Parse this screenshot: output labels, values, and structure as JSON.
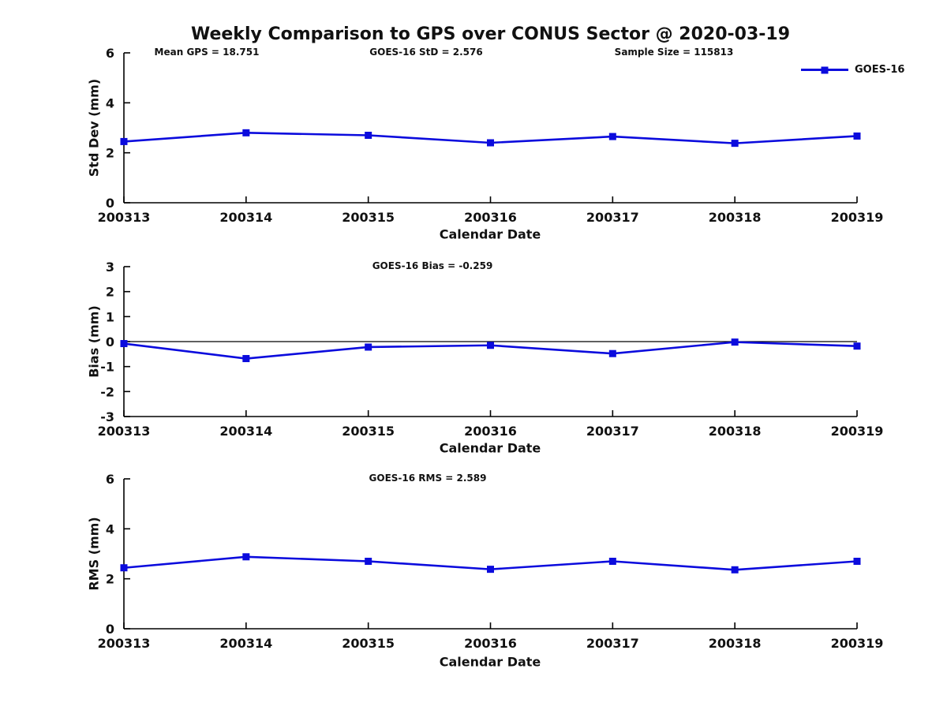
{
  "figure": {
    "title": "Weekly Comparison to GPS over CONUS Sector @ 2020-03-19",
    "annotations": {
      "mean_gps": "Mean GPS = 18.751",
      "std": "GOES-16 StD = 2.576",
      "sample_size": "Sample Size = 115813"
    },
    "legend": {
      "label": "GOES-16",
      "color": "#0b0bdd"
    },
    "line_color": "#0b0bdd",
    "axis_color": "#000000"
  },
  "chart_data": [
    {
      "type": "line",
      "title": "",
      "xlabel": "Calendar Date",
      "ylabel": "Std Dev (mm)",
      "categories": [
        "200313",
        "200314",
        "200315",
        "200316",
        "200317",
        "200318",
        "200319"
      ],
      "series": [
        {
          "name": "GOES-16",
          "values": [
            2.45,
            2.8,
            2.7,
            2.4,
            2.65,
            2.38,
            2.67
          ]
        }
      ],
      "ylim": [
        0,
        6
      ],
      "yticks": [
        0,
        2,
        4,
        6
      ],
      "grid": false,
      "legend_position": "upper-right",
      "marker": "square"
    },
    {
      "type": "line",
      "title": "GOES-16 Bias  = -0.259",
      "xlabel": "Calendar Date",
      "ylabel": "Bias (mm)",
      "categories": [
        "200313",
        "200314",
        "200315",
        "200316",
        "200317",
        "200318",
        "200319"
      ],
      "series": [
        {
          "name": "GOES-16",
          "values": [
            -0.08,
            -0.68,
            -0.22,
            -0.15,
            -0.48,
            -0.02,
            -0.18
          ]
        }
      ],
      "ylim": [
        -3,
        3
      ],
      "yticks": [
        3,
        2,
        1,
        0,
        -1,
        -2,
        -3
      ],
      "zeroline": true,
      "grid": false,
      "marker": "square"
    },
    {
      "type": "line",
      "title": "GOES-16 RMS = 2.589",
      "xlabel": "Calendar Date",
      "ylabel": "RMS (mm)",
      "categories": [
        "200313",
        "200314",
        "200315",
        "200316",
        "200317",
        "200318",
        "200319"
      ],
      "series": [
        {
          "name": "GOES-16",
          "values": [
            2.44,
            2.88,
            2.7,
            2.38,
            2.7,
            2.36,
            2.7
          ]
        }
      ],
      "ylim": [
        0,
        6
      ],
      "yticks": [
        0,
        2,
        4,
        6
      ],
      "grid": false,
      "marker": "square"
    }
  ]
}
